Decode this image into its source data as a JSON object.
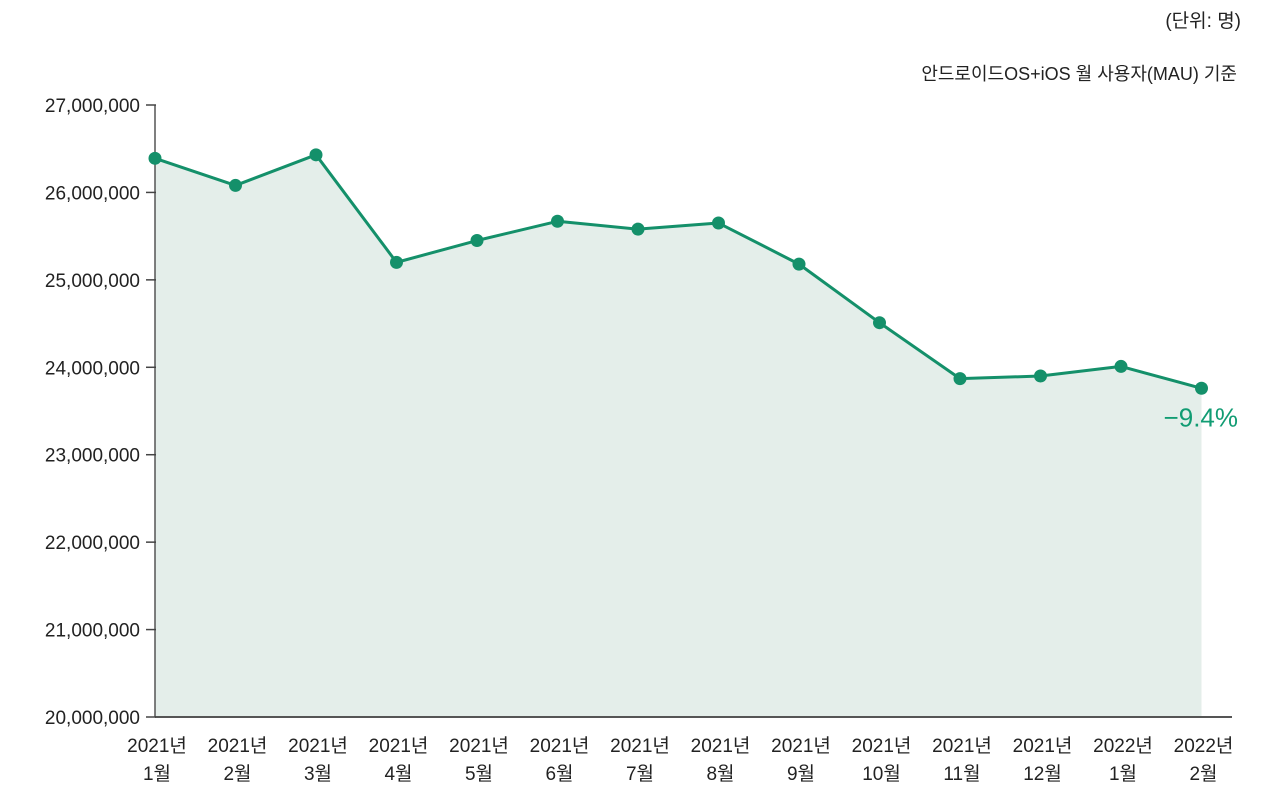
{
  "unit_note": "(단위: 명)",
  "basis_note": "안드로이드OS+iOS 월 사용자(MAU) 기준",
  "chart_data": {
    "type": "area",
    "title": "",
    "xlabel": "",
    "ylabel": "",
    "ylim": [
      20000000,
      27000000
    ],
    "yticks": [
      20000000,
      21000000,
      22000000,
      23000000,
      24000000,
      25000000,
      26000000,
      27000000
    ],
    "ytick_labels": [
      "20,000,000",
      "21,000,000",
      "22,000,000",
      "23,000,000",
      "24,000,000",
      "25,000,000",
      "26,000,000",
      "27,000,000"
    ],
    "categories": [
      {
        "year": "2021년",
        "month": "1월"
      },
      {
        "year": "2021년",
        "month": "2월"
      },
      {
        "year": "2021년",
        "month": "3월"
      },
      {
        "year": "2021년",
        "month": "4월"
      },
      {
        "year": "2021년",
        "month": "5월"
      },
      {
        "year": "2021년",
        "month": "6월"
      },
      {
        "year": "2021년",
        "month": "7월"
      },
      {
        "year": "2021년",
        "month": "8월"
      },
      {
        "year": "2021년",
        "month": "9월"
      },
      {
        "year": "2021년",
        "month": "10월"
      },
      {
        "year": "2021년",
        "month": "11월"
      },
      {
        "year": "2021년",
        "month": "12월"
      },
      {
        "year": "2022년",
        "month": "1월"
      },
      {
        "year": "2022년",
        "month": "2월"
      }
    ],
    "values": [
      26390000,
      26080000,
      26430000,
      25200000,
      25450000,
      25670000,
      25580000,
      25650000,
      25180000,
      24510000,
      23870000,
      23900000,
      24010000,
      23760000
    ],
    "annotation": {
      "text": "−9.4%",
      "index": 13
    },
    "grid": false,
    "line_color": "#14906a",
    "fill_color": "#e4eeea"
  }
}
